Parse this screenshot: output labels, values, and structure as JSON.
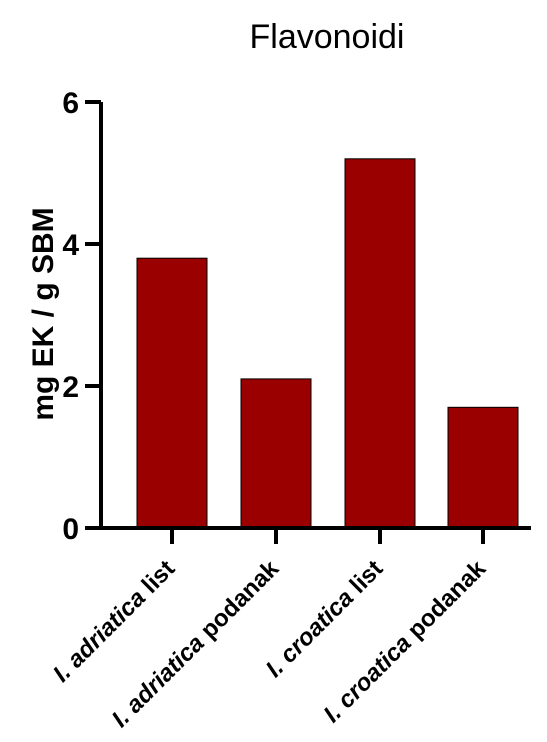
{
  "chart_data": {
    "type": "bar",
    "title": "Flavonoidi",
    "xlabel": "",
    "ylabel": "mg EK / g SBM",
    "ylim": [
      0,
      6
    ],
    "yticks": [
      "0",
      "2",
      "4",
      "6"
    ],
    "grid": false,
    "legend": "none",
    "categories": [
      {
        "italic": "I. adriatica",
        "rest": " list"
      },
      {
        "italic": "I. adriatica",
        "rest": " podanak"
      },
      {
        "italic": "I. croatica",
        "rest": " list"
      },
      {
        "italic": "I. croatica",
        "rest": " podanak"
      }
    ],
    "values": [
      3.8,
      2.1,
      5.2,
      1.7
    ],
    "bar_color": "#9b0000",
    "axis_color": "#000000"
  }
}
